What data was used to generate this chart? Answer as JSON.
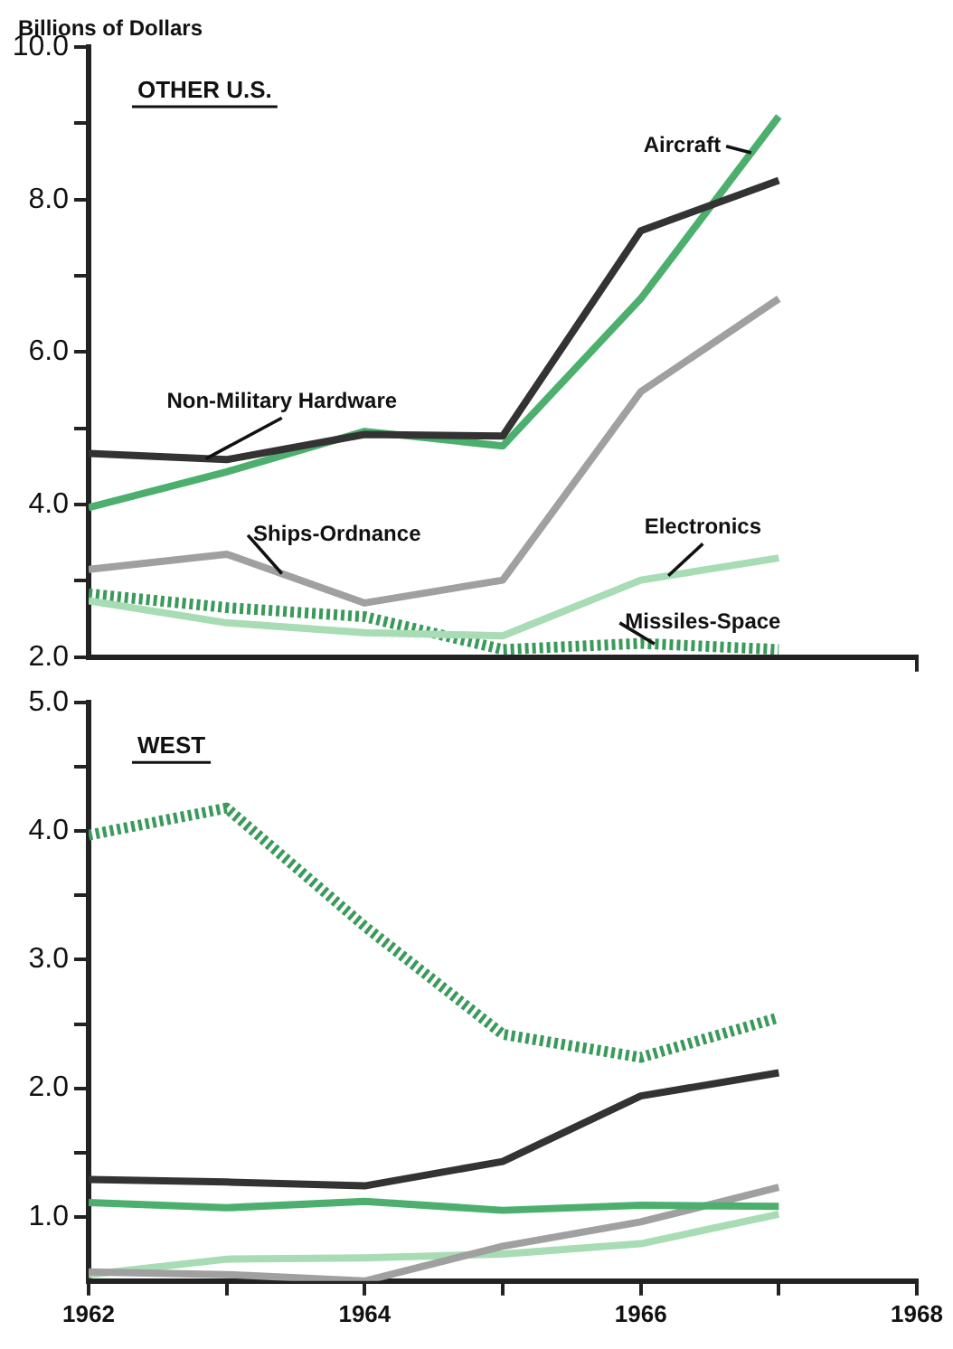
{
  "chart_data": [
    {
      "type": "line",
      "title": "OTHER U.S.",
      "ylabel": "Billions of Dollars",
      "x": [
        1962,
        1963,
        1964,
        1965,
        1966,
        1967
      ],
      "series": [
        {
          "name": "Non-Military Hardware",
          "color": "#333333",
          "values": [
            4.67,
            4.59,
            4.92,
            4.9,
            7.59,
            8.25
          ]
        },
        {
          "name": "Aircraft",
          "color": "#4caf6e",
          "values": [
            3.96,
            4.43,
            4.96,
            4.77,
            6.7,
            9.09
          ]
        },
        {
          "name": "Ships-Ordnance",
          "color": "#a0a0a0",
          "values": [
            3.15,
            3.35,
            2.71,
            3.01,
            5.48,
            6.7
          ]
        },
        {
          "name": "Electronics",
          "color": "#a8dcb4",
          "values": [
            2.74,
            2.45,
            2.32,
            2.28,
            3.01,
            3.3
          ]
        },
        {
          "name": "Missiles-Space",
          "color": "#3a9a5a",
          "line_style": "dotted",
          "values": [
            2.83,
            2.65,
            2.53,
            2.1,
            2.18,
            2.1
          ]
        }
      ],
      "xlim": [
        1962,
        1968
      ],
      "xticks": [
        {
          "value": 1968,
          "label": null
        }
      ],
      "ylim": [
        2,
        10
      ],
      "yticks": [
        {
          "value": 2,
          "label": "2.0"
        },
        {
          "value": 3,
          "label": null
        },
        {
          "value": 4,
          "label": "4.0"
        },
        {
          "value": 5,
          "label": null
        },
        {
          "value": 6,
          "label": "6.0"
        },
        {
          "value": 7,
          "label": null
        },
        {
          "value": 8,
          "label": "8.0"
        },
        {
          "value": 9,
          "label": null
        },
        {
          "value": 10,
          "label": "10.0"
        }
      ],
      "tick_labels": "y",
      "marker": "none",
      "legend": false,
      "grid": false
    },
    {
      "type": "line",
      "title": "WEST",
      "x": [
        1962,
        1963,
        1964,
        1965,
        1966,
        1967
      ],
      "series": [
        {
          "color": "#333333",
          "values": [
            1.29,
            1.27,
            1.24,
            1.43,
            1.94,
            2.12
          ]
        },
        {
          "color": "#4caf6e",
          "values": [
            1.11,
            1.07,
            1.12,
            1.05,
            1.09,
            1.08
          ]
        },
        {
          "color": "#a0a0a0",
          "values": [
            0.57,
            0.55,
            0.5,
            0.77,
            0.96,
            1.23
          ]
        },
        {
          "color": "#a8dcb4",
          "values": [
            0.55,
            0.67,
            0.68,
            0.71,
            0.79,
            1.02
          ]
        },
        {
          "color": "#3a9a5a",
          "line_style": "dotted",
          "values": [
            3.97,
            4.18,
            3.26,
            2.42,
            2.24,
            2.55
          ]
        }
      ],
      "xlim": [
        1962,
        1968
      ],
      "xticks": [
        {
          "value": 1962,
          "label": "1962"
        },
        {
          "value": 1963,
          "label": null
        },
        {
          "value": 1964,
          "label": "1964"
        },
        {
          "value": 1965,
          "label": null
        },
        {
          "value": 1966,
          "label": "1966"
        },
        {
          "value": 1967,
          "label": null
        },
        {
          "value": 1968,
          "label": "1968"
        }
      ],
      "ylim": [
        0.5,
        5
      ],
      "yticks": [
        {
          "value": 1,
          "label": "1.0"
        },
        {
          "value": 1.5,
          "label": null
        },
        {
          "value": 2,
          "label": "2.0"
        },
        {
          "value": 2.5,
          "label": null
        },
        {
          "value": 3,
          "label": "3.0"
        },
        {
          "value": 3.5,
          "label": null
        },
        {
          "value": 4,
          "label": "4.0"
        },
        {
          "value": 4.5,
          "label": null
        },
        {
          "value": 5,
          "label": "5.0"
        }
      ],
      "marker": "none",
      "legend": false,
      "grid": false
    }
  ]
}
